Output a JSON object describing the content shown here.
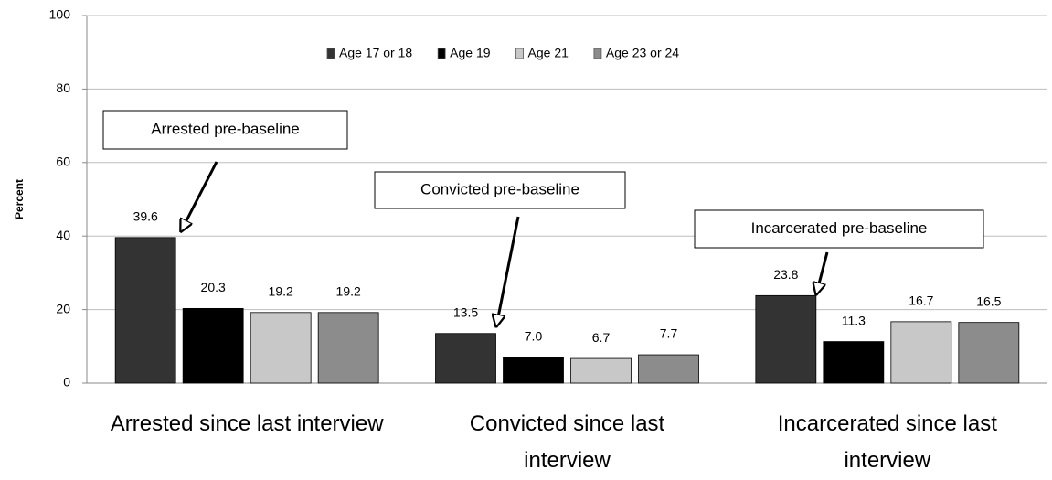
{
  "chart_data": {
    "type": "bar",
    "y_label": "Percent",
    "categories": [
      "Arrested since last interview",
      "Convicted since last interview",
      "Incarcerated since last interview"
    ],
    "series": [
      {
        "name": "Age 17 or 18",
        "color": "#333333",
        "values": [
          39.6,
          13.5,
          23.8
        ],
        "value_labels": [
          "39.6",
          "13.5",
          "23.8"
        ]
      },
      {
        "name": "Age 19",
        "color": "#000000",
        "values": [
          20.3,
          7.0,
          11.3
        ],
        "value_labels": [
          "20.3",
          "7.0",
          "11.3"
        ]
      },
      {
        "name": "Age 21",
        "color": "#c8c8c8",
        "values": [
          19.2,
          6.7,
          16.7
        ],
        "value_labels": [
          "19.2",
          "6.7",
          "16.7"
        ]
      },
      {
        "name": "Age 23 or 24",
        "color": "#8c8c8c",
        "values": [
          19.2,
          7.7,
          16.5
        ],
        "value_labels": [
          "19.2",
          "7.7",
          "16.5"
        ]
      }
    ],
    "annotations": [
      "Arrested pre-baseline",
      "Convicted pre-baseline",
      "Incarcerated pre-baseline"
    ],
    "ylim": [
      0,
      100
    ],
    "yticks": [
      0,
      20,
      40,
      60,
      80,
      100
    ],
    "grid": true,
    "legend": "top"
  }
}
